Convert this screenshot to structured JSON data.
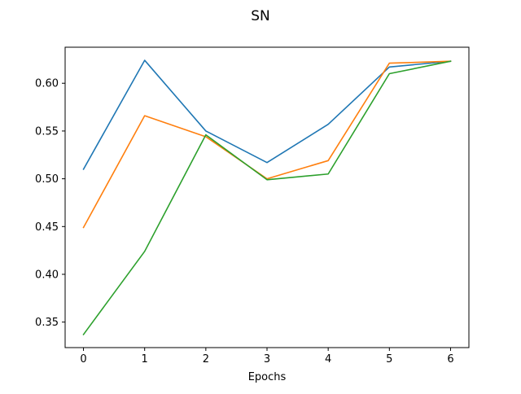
{
  "chart_data": {
    "type": "line",
    "title": "SN",
    "xlabel": "Epochs",
    "ylabel": "",
    "x": [
      0,
      1,
      2,
      3,
      4,
      5,
      6
    ],
    "xlim": [
      -0.3,
      6.3
    ],
    "ylim": [
      0.3233,
      0.6377
    ],
    "xticks": [
      0,
      1,
      2,
      3,
      4,
      5,
      6
    ],
    "yticks": [
      0.35,
      0.4,
      0.45,
      0.5,
      0.55,
      0.6
    ],
    "ytick_labels": [
      "0.35",
      "0.40",
      "0.45",
      "0.50",
      "0.55",
      "0.60"
    ],
    "grid": false,
    "series": [
      {
        "color": "#1f77b4",
        "values": [
          0.51,
          0.624,
          0.55,
          0.517,
          0.557,
          0.617,
          0.623
        ]
      },
      {
        "color": "#ff7f0e",
        "values": [
          0.449,
          0.566,
          0.544,
          0.5,
          0.519,
          0.621,
          0.623
        ]
      },
      {
        "color": "#2ca02c",
        "values": [
          0.337,
          0.424,
          0.546,
          0.499,
          0.505,
          0.61,
          0.623
        ]
      }
    ]
  }
}
